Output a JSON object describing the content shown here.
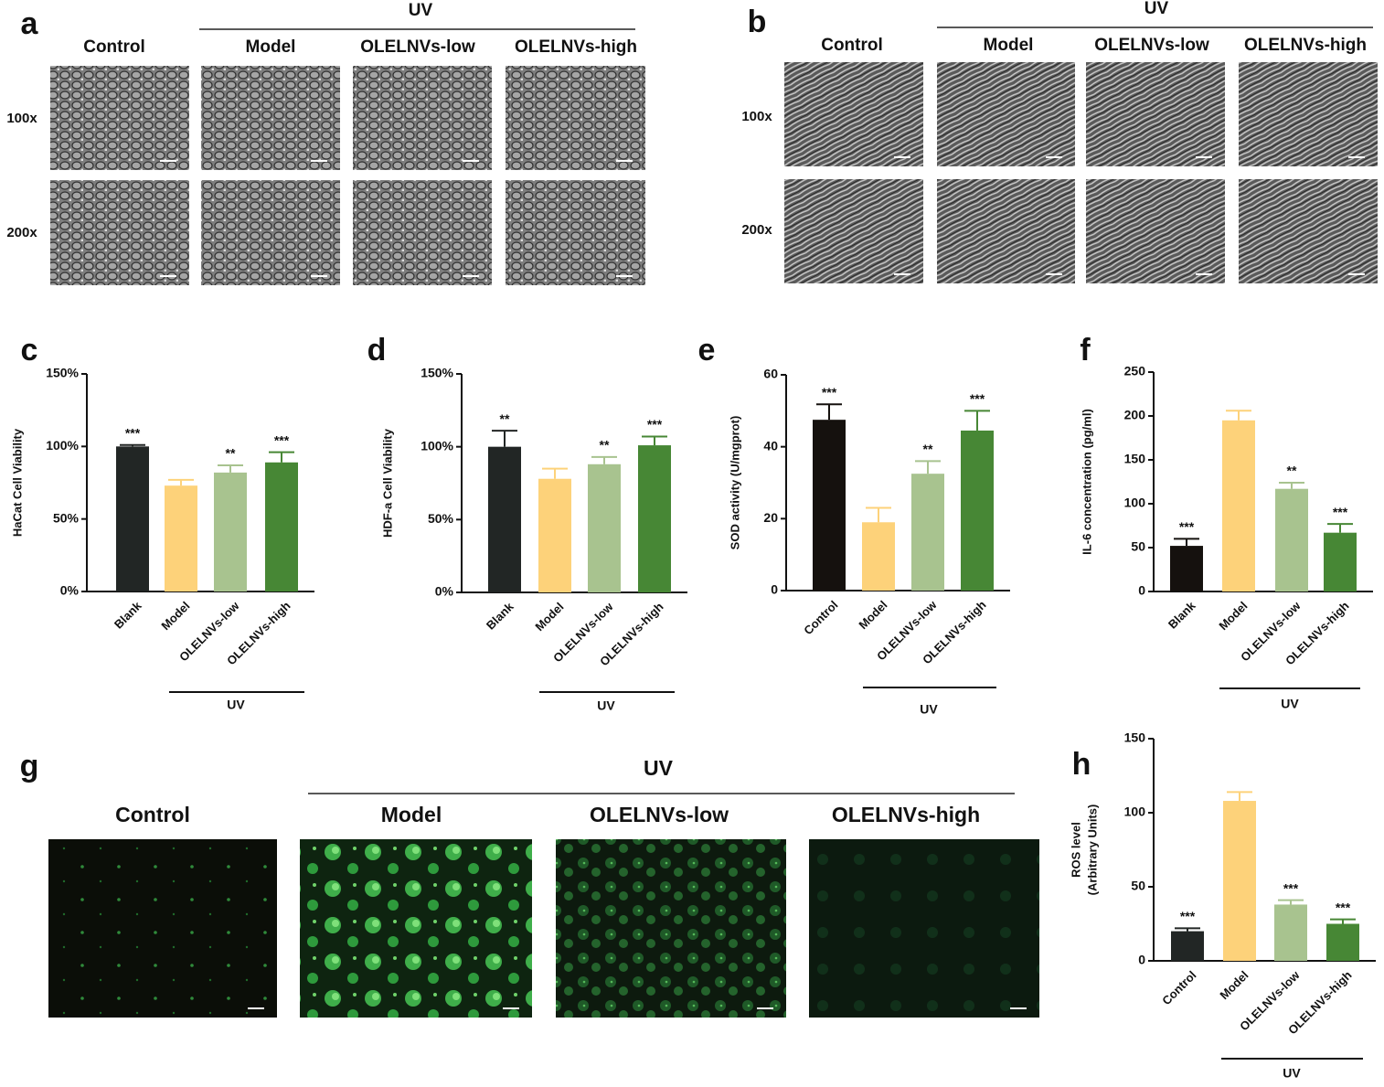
{
  "image_panels": [
    {
      "label": "a",
      "group_label": "UV",
      "columns": [
        "Control",
        "Model",
        "OLELNVs-low",
        "OLELNVs-high"
      ],
      "rows": [
        "100x",
        "200x"
      ]
    },
    {
      "label": "b",
      "group_label": "UV",
      "columns": [
        "Control",
        "Model",
        "OLELNVs-low",
        "OLELNVs-high"
      ],
      "rows": [
        "100x",
        "200x"
      ]
    },
    {
      "label": "g",
      "group_label": "UV",
      "columns": [
        "Control",
        "Model",
        "OLELNVs-low",
        "OLELNVs-high"
      ]
    }
  ],
  "chart_data": [
    {
      "type": "bar",
      "label": "c",
      "ylabel": "HaCat Cell Viability",
      "categories": [
        "Blank",
        "Model",
        "OLELNVs-low",
        "OLELNVs-high"
      ],
      "values": [
        100,
        73,
        82,
        89
      ],
      "errors": [
        1,
        4,
        5,
        7
      ],
      "annotations": [
        "***",
        null,
        "**",
        "***"
      ],
      "colors": [
        "#222625",
        "#fdd27a",
        "#a8c38f",
        "#478735"
      ],
      "group_label": "UV",
      "ylim": [
        0,
        150
      ],
      "yticks": [
        {
          "value": 0,
          "label": "0%"
        },
        {
          "value": 50,
          "label": "50%"
        },
        {
          "value": 100,
          "label": "100%"
        },
        {
          "value": 150,
          "label": "150%"
        }
      ]
    },
    {
      "type": "bar",
      "label": "d",
      "ylabel": "HDF-a Cell Viability",
      "categories": [
        "Blank",
        "Model",
        "OLELNVs-low",
        "OLELNVs-high"
      ],
      "values": [
        100,
        78,
        88,
        101
      ],
      "errors": [
        11,
        7,
        5,
        6
      ],
      "annotations": [
        "**",
        null,
        "**",
        "***"
      ],
      "colors": [
        "#222625",
        "#fdd27a",
        "#a8c38f",
        "#478735"
      ],
      "group_label": "UV",
      "ylim": [
        0,
        150
      ],
      "yticks": [
        {
          "value": 0,
          "label": "0%"
        },
        {
          "value": 50,
          "label": "50%"
        },
        {
          "value": 100,
          "label": "100%"
        },
        {
          "value": 150,
          "label": "150%"
        }
      ]
    },
    {
      "type": "bar",
      "label": "e",
      "ylabel": "SOD activity  (U/mgprot)",
      "categories": [
        "Control",
        "Model",
        "OLELNVs-low",
        "OLELNVs-high"
      ],
      "values": [
        47.5,
        19,
        32.5,
        44.5
      ],
      "errors": [
        4.3,
        4,
        3.5,
        5.5
      ],
      "annotations": [
        "***",
        null,
        "**",
        "***"
      ],
      "colors": [
        "#15110e",
        "#fdd27a",
        "#a8c38f",
        "#478735"
      ],
      "group_label": "UV",
      "ylim": [
        0,
        60
      ],
      "yticks": [
        0,
        20,
        40,
        60
      ]
    },
    {
      "type": "bar",
      "label": "f",
      "ylabel": "IL-6 concentration  (pg/ml)",
      "categories": [
        "Blank",
        "Model",
        "OLELNVs-low",
        "OLELNVs-high"
      ],
      "values": [
        52,
        195,
        117,
        67
      ],
      "errors": [
        8,
        11,
        7,
        10
      ],
      "annotations": [
        "***",
        null,
        "**",
        "***"
      ],
      "colors": [
        "#15110e",
        "#fdd27a",
        "#a8c38f",
        "#478735"
      ],
      "group_label": "UV",
      "ylim": [
        0,
        250
      ],
      "yticks": [
        0,
        50,
        100,
        150,
        200,
        250
      ]
    },
    {
      "type": "bar",
      "label": "h",
      "ylabel": [
        "ROS level",
        "(Arbitrary Units)"
      ],
      "categories": [
        "Control",
        "Model",
        "OLELNVs-low",
        "OLELNVs-high"
      ],
      "values": [
        20,
        108,
        38,
        25
      ],
      "errors": [
        2,
        6,
        3,
        3
      ],
      "annotations": [
        "***",
        null,
        "***",
        "***"
      ],
      "colors": [
        "#222625",
        "#fdd27a",
        "#a8c38f",
        "#478735"
      ],
      "group_label": "UV",
      "ylim": [
        0,
        150
      ],
      "yticks": [
        0,
        50,
        100,
        150
      ]
    }
  ]
}
